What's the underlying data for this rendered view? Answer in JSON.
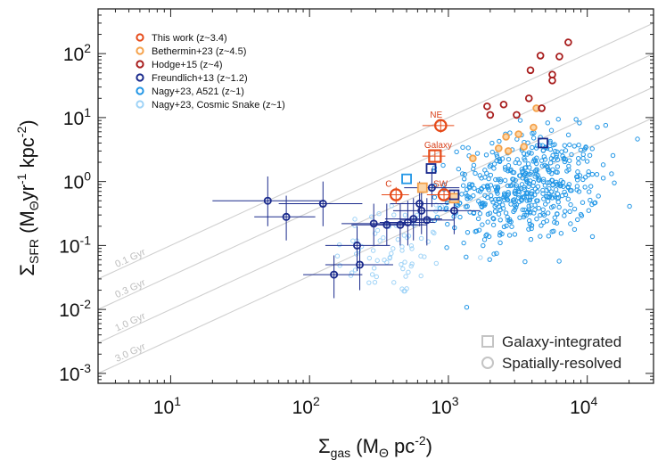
{
  "chart_data": {
    "type": "scatter",
    "xlabel": "Σgas (MΘ pc-2)",
    "ylabel": "ΣSFR (MΘ yr-1 kpc-2)",
    "x_scale": "log",
    "y_scale": "log",
    "xlim": [
      3,
      30000
    ],
    "ylim": [
      0.0007,
      500
    ],
    "x_ticks": [
      {
        "value": 10,
        "base": "10",
        "exp": "1"
      },
      {
        "value": 100,
        "base": "10",
        "exp": "2"
      },
      {
        "value": 1000,
        "base": "10",
        "exp": "3"
      },
      {
        "value": 10000,
        "base": "10",
        "exp": "4"
      }
    ],
    "y_ticks": [
      {
        "value": 0.001,
        "base": "10",
        "exp": "-3"
      },
      {
        "value": 0.01,
        "base": "10",
        "exp": "-2"
      },
      {
        "value": 0.1,
        "base": "10",
        "exp": "-1"
      },
      {
        "value": 1,
        "base": "10",
        "exp": "0"
      },
      {
        "value": 10,
        "base": "10",
        "exp": "1"
      },
      {
        "value": 100,
        "base": "10",
        "exp": "2"
      }
    ],
    "grid": false,
    "legend_position": "top-left",
    "depletion_lines": [
      {
        "label": "0.1 Gyr",
        "tdep_gyr": 0.1
      },
      {
        "label": "0.3 Gyr",
        "tdep_gyr": 0.3
      },
      {
        "label": "1.0 Gyr",
        "tdep_gyr": 1.0
      },
      {
        "label": "3.0 Gyr",
        "tdep_gyr": 3.0
      }
    ],
    "series": [
      {
        "name": "This work (z~3.4)",
        "color": "#e64a19",
        "points": [
          {
            "x": 800,
            "y": 2.5,
            "marker": "square",
            "label": "Galaxy",
            "xerr": [
              650,
              950
            ],
            "yerr": [
              2.0,
              3.1
            ]
          },
          {
            "x": 880,
            "y": 7.5,
            "marker": "circle",
            "label": "NE",
            "xerr": [
              650,
              1100
            ],
            "yerr": [
              5.8,
              9.5
            ]
          },
          {
            "x": 420,
            "y": 0.62,
            "marker": "circle",
            "label": "C",
            "xerr": [
              330,
              520
            ],
            "yerr": [
              0.45,
              0.82
            ]
          },
          {
            "x": 930,
            "y": 0.62,
            "marker": "circle",
            "label": "SW",
            "xerr": [
              700,
              1150
            ],
            "yerr": [
              0.5,
              0.78
            ]
          }
        ]
      },
      {
        "name": "Bethermin+23 (z~4.5)",
        "color": "#f5a24b",
        "points": [
          {
            "x": 650,
            "y": 0.8,
            "marker": "square"
          },
          {
            "x": 1100,
            "y": 0.55,
            "marker": "square"
          },
          {
            "x": 1500,
            "y": 2.3,
            "marker": "circle"
          },
          {
            "x": 2600,
            "y": 5.0,
            "marker": "circle"
          },
          {
            "x": 3200,
            "y": 5.5,
            "marker": "circle"
          },
          {
            "x": 4100,
            "y": 7.0,
            "marker": "circle"
          },
          {
            "x": 4300,
            "y": 14.0,
            "marker": "circle"
          },
          {
            "x": 2300,
            "y": 3.3,
            "marker": "circle"
          },
          {
            "x": 2700,
            "y": 3.0,
            "marker": "circle"
          },
          {
            "x": 3500,
            "y": 3.5,
            "marker": "circle"
          }
        ]
      },
      {
        "name": "Hodge+15 (z~4)",
        "color": "#a81d1d",
        "points": [
          {
            "x": 1900,
            "y": 15.0
          },
          {
            "x": 2500,
            "y": 16.0
          },
          {
            "x": 3100,
            "y": 11.0
          },
          {
            "x": 3800,
            "y": 20.0
          },
          {
            "x": 3900,
            "y": 55.0
          },
          {
            "x": 4600,
            "y": 93.0
          },
          {
            "x": 4700,
            "y": 14.0
          },
          {
            "x": 5600,
            "y": 47.0
          },
          {
            "x": 5600,
            "y": 38.0
          },
          {
            "x": 6300,
            "y": 90.0
          },
          {
            "x": 7300,
            "y": 150.0
          },
          {
            "x": 2000,
            "y": 11.0
          }
        ]
      },
      {
        "name": "Freundlich+13 (z~1.2)",
        "color": "#1a2a8c",
        "points": [
          {
            "x": 50,
            "y": 0.5,
            "xerr": [
              20,
              130
            ],
            "yerr": [
              0.2,
              1.2
            ]
          },
          {
            "x": 68,
            "y": 0.28,
            "xerr": [
              40,
              110
            ],
            "yerr": [
              0.12,
              0.6
            ]
          },
          {
            "x": 125,
            "y": 0.45,
            "xerr": [
              60,
              240
            ],
            "yerr": [
              0.2,
              1.0
            ]
          },
          {
            "x": 150,
            "y": 0.035,
            "xerr": [
              90,
              240
            ],
            "yerr": [
              0.015,
              0.07
            ]
          },
          {
            "x": 220,
            "y": 0.1,
            "xerr": [
              130,
              380
            ],
            "yerr": [
              0.04,
              0.2
            ]
          },
          {
            "x": 230,
            "y": 0.05,
            "xerr": [
              130,
              400
            ],
            "yerr": [
              0.02,
              0.1
            ]
          },
          {
            "x": 290,
            "y": 0.22,
            "xerr": [
              170,
              500
            ],
            "yerr": [
              0.1,
              0.45
            ]
          },
          {
            "x": 360,
            "y": 0.21,
            "xerr": [
              200,
              600
            ],
            "yerr": [
              0.1,
              0.45
            ]
          },
          {
            "x": 450,
            "y": 0.21,
            "xerr": [
              280,
              700
            ],
            "yerr": [
              0.1,
              0.45
            ]
          },
          {
            "x": 510,
            "y": 0.23,
            "xerr": [
              320,
              800
            ],
            "yerr": [
              0.1,
              0.5
            ]
          },
          {
            "x": 560,
            "y": 0.26,
            "xerr": [
              350,
              900
            ],
            "yerr": [
              0.12,
              0.55
            ]
          },
          {
            "x": 620,
            "y": 0.45,
            "xerr": [
              380,
              1000
            ],
            "yerr": [
              0.2,
              1.0
            ]
          },
          {
            "x": 640,
            "y": 0.35,
            "xerr": [
              400,
              1000
            ],
            "yerr": [
              0.15,
              0.7
            ]
          },
          {
            "x": 700,
            "y": 0.25,
            "xerr": [
              450,
              1100
            ],
            "yerr": [
              0.1,
              0.55
            ]
          },
          {
            "x": 760,
            "y": 0.8,
            "xerr": [
              480,
              1200
            ],
            "yerr": [
              0.4,
              1.6
            ]
          },
          {
            "x": 1100,
            "y": 0.35,
            "xerr": [
              700,
              1700
            ],
            "yerr": [
              0.15,
              0.7
            ]
          },
          {
            "x": 750,
            "y": 1.6,
            "marker": "square"
          },
          {
            "x": 1100,
            "y": 0.62,
            "marker": "square"
          },
          {
            "x": 4800,
            "y": 4.0,
            "marker": "square"
          }
        ]
      },
      {
        "name": "Nagy+23, A521 (z~1)",
        "color": "#2196e6",
        "cloud": {
          "count": 520,
          "x_log_center": 3.55,
          "x_log_sigma": 0.27,
          "y_log_center": -0.1,
          "y_log_sigma": 0.42,
          "x_log_min": 2.9,
          "x_log_max": 4.42
        },
        "points": [
          {
            "x": 500,
            "y": 1.1,
            "marker": "square"
          }
        ]
      },
      {
        "name": "Nagy+23, Cosmic Snake (z~1)",
        "color": "#9fd3f7",
        "cloud": {
          "count": 75,
          "x_log_center": 2.62,
          "x_log_sigma": 0.22,
          "y_log_center": -1.05,
          "y_log_sigma": 0.4,
          "x_log_min": 2.0,
          "x_log_max": 3.25
        }
      }
    ],
    "marker_key": [
      {
        "label": "Galaxy-integrated",
        "marker": "square"
      },
      {
        "label": "Spatially-resolved",
        "marker": "circle"
      }
    ]
  }
}
